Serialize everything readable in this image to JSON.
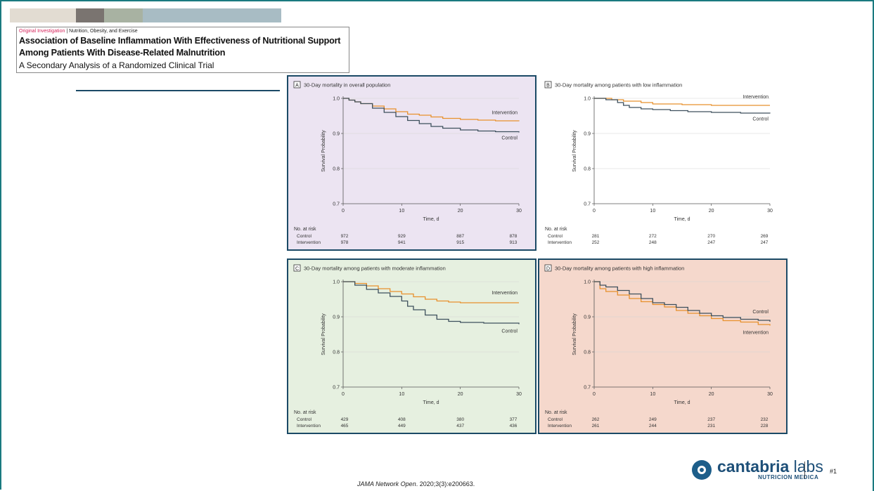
{
  "header": {
    "kicker_section": "Original Investigation",
    "kicker_sep": " | ",
    "kicker_topic": "Nutrition, Obesity, and Exercise",
    "title_line1": "Association of Baseline Inflammation With Effectiveness of Nutritional Support",
    "title_line2": "Among Patients With Disease-Related Malnutrition",
    "subtitle": "A Secondary Analysis of a Randomized Clinical Trial"
  },
  "colors": {
    "accent_teal": "#1a7a80",
    "control_line": "#3d4f5c",
    "intervention_line": "#e8902c",
    "panel_a_bg": "#ece4f2",
    "panel_c_bg": "#e6f0e0",
    "panel_d_bg": "#f5d8cc",
    "panel_border": "#1b4a66"
  },
  "chart_data": [
    {
      "type": "line",
      "panel_letter": "A",
      "title": "30-Day mortality in overall population",
      "xlabel": "Time, d",
      "ylabel": "Survival Probability",
      "xlim": [
        0,
        30
      ],
      "ylim": [
        0.7,
        1.0
      ],
      "xticks": [
        "0",
        "10",
        "20",
        "30"
      ],
      "yticks": [
        "1.0",
        "0.9",
        "0.8",
        "0.7"
      ],
      "series": [
        {
          "name": "Intervention",
          "x": [
            0,
            1,
            2,
            3,
            5,
            7,
            9,
            11,
            13,
            15,
            17,
            20,
            23,
            26,
            30
          ],
          "y": [
            1.0,
            0.995,
            0.99,
            0.985,
            0.978,
            0.97,
            0.962,
            0.955,
            0.952,
            0.947,
            0.943,
            0.94,
            0.938,
            0.936,
            0.935
          ]
        },
        {
          "name": "Control",
          "x": [
            0,
            1,
            2,
            3,
            5,
            7,
            9,
            11,
            13,
            15,
            17,
            20,
            23,
            26,
            30
          ],
          "y": [
            1.0,
            0.995,
            0.99,
            0.985,
            0.972,
            0.96,
            0.948,
            0.937,
            0.928,
            0.92,
            0.915,
            0.91,
            0.907,
            0.905,
            0.903
          ]
        }
      ],
      "label_intervention": "Intervention",
      "label_control": "Control",
      "risk_table": {
        "header": "No. at risk",
        "rows": [
          {
            "label": "Control",
            "values": [
              "972",
              "929",
              "887",
              "878"
            ]
          },
          {
            "label": "Intervention",
            "values": [
              "978",
              "941",
              "915",
              "913"
            ]
          }
        ]
      }
    },
    {
      "type": "line",
      "panel_letter": "B",
      "title": "30-Day mortality among patients with low inflammation",
      "xlabel": "Time, d",
      "ylabel": "Survival Probability",
      "xlim": [
        0,
        30
      ],
      "ylim": [
        0.7,
        1.0
      ],
      "xticks": [
        "0",
        "10",
        "20",
        "30"
      ],
      "yticks": [
        "1.0",
        "0.9",
        "0.8",
        "0.7"
      ],
      "series": [
        {
          "name": "Intervention",
          "x": [
            0,
            3,
            5,
            8,
            10,
            15,
            20,
            30
          ],
          "y": [
            1.0,
            0.996,
            0.992,
            0.988,
            0.984,
            0.982,
            0.98,
            0.98
          ]
        },
        {
          "name": "Control",
          "x": [
            0,
            2,
            4,
            5,
            6,
            8,
            10,
            13,
            16,
            20,
            25,
            30
          ],
          "y": [
            1.0,
            0.996,
            0.988,
            0.98,
            0.974,
            0.97,
            0.968,
            0.965,
            0.962,
            0.96,
            0.958,
            0.957
          ]
        }
      ],
      "label_intervention": "Intervention",
      "label_control": "Control",
      "risk_table": {
        "header": "No. at risk",
        "rows": [
          {
            "label": "Control",
            "values": [
              "281",
              "272",
              "270",
              "269"
            ]
          },
          {
            "label": "Intervention",
            "values": [
              "252",
              "248",
              "247",
              "247"
            ]
          }
        ]
      }
    },
    {
      "type": "line",
      "panel_letter": "C",
      "title": "30-Day mortality among patients with moderate inflammation",
      "xlabel": "Time, d",
      "ylabel": "Survival Probability",
      "xlim": [
        0,
        30
      ],
      "ylim": [
        0.7,
        1.0
      ],
      "xticks": [
        "0",
        "10",
        "20",
        "30"
      ],
      "yticks": [
        "1.0",
        "0.9",
        "0.8",
        "0.7"
      ],
      "series": [
        {
          "name": "Intervention",
          "x": [
            0,
            2,
            4,
            6,
            8,
            10,
            12,
            14,
            16,
            18,
            20,
            25,
            30
          ],
          "y": [
            1.0,
            0.995,
            0.988,
            0.98,
            0.972,
            0.965,
            0.957,
            0.95,
            0.945,
            0.942,
            0.94,
            0.94,
            0.94
          ]
        },
        {
          "name": "Control",
          "x": [
            0,
            2,
            4,
            6,
            8,
            10,
            11,
            12,
            14,
            16,
            18,
            20,
            24,
            30
          ],
          "y": [
            1.0,
            0.99,
            0.978,
            0.968,
            0.958,
            0.945,
            0.93,
            0.92,
            0.905,
            0.893,
            0.887,
            0.884,
            0.882,
            0.879
          ]
        }
      ],
      "label_intervention": "Intervention",
      "label_control": "Control",
      "risk_table": {
        "header": "No. at risk",
        "rows": [
          {
            "label": "Control",
            "values": [
              "429",
              "408",
              "380",
              "377"
            ]
          },
          {
            "label": "Intervention",
            "values": [
              "465",
              "449",
              "437",
              "436"
            ]
          }
        ]
      }
    },
    {
      "type": "line",
      "panel_letter": "D",
      "title": "30-Day mortality among patients with high inflammation",
      "xlabel": "Time, d",
      "ylabel": "Survival Probability",
      "xlim": [
        0,
        30
      ],
      "ylim": [
        0.7,
        1.0
      ],
      "xticks": [
        "0",
        "10",
        "20",
        "30"
      ],
      "yticks": [
        "1.0",
        "0.9",
        "0.8",
        "0.7"
      ],
      "series": [
        {
          "name": "Intervention",
          "x": [
            0,
            1,
            2,
            4,
            6,
            8,
            10,
            12,
            14,
            16,
            18,
            20,
            22,
            25,
            28,
            30
          ],
          "y": [
            1.0,
            0.98,
            0.972,
            0.962,
            0.952,
            0.943,
            0.935,
            0.928,
            0.918,
            0.91,
            0.903,
            0.895,
            0.889,
            0.885,
            0.878,
            0.875
          ]
        },
        {
          "name": "Control",
          "x": [
            0,
            1,
            2,
            4,
            6,
            8,
            10,
            12,
            14,
            16,
            18,
            20,
            22,
            25,
            28,
            30
          ],
          "y": [
            1.0,
            0.99,
            0.985,
            0.975,
            0.965,
            0.952,
            0.94,
            0.935,
            0.927,
            0.918,
            0.91,
            0.903,
            0.898,
            0.893,
            0.89,
            0.886
          ]
        }
      ],
      "label_intervention": "Intervention",
      "label_control": "Control",
      "risk_table": {
        "header": "No. at risk",
        "rows": [
          {
            "label": "Control",
            "values": [
              "262",
              "249",
              "237",
              "232"
            ]
          },
          {
            "label": "Intervention",
            "values": [
              "261",
              "244",
              "231",
              "228"
            ]
          }
        ]
      }
    }
  ],
  "footer": {
    "citation_journal": "JAMA Network Open",
    "citation_rest": ". 2020;3(3):e200663.",
    "logo_name_bold": "cantabria",
    "logo_name_light": " labs",
    "logo_sub": "NUTRICION MEDICA",
    "slide_number": "#1"
  }
}
